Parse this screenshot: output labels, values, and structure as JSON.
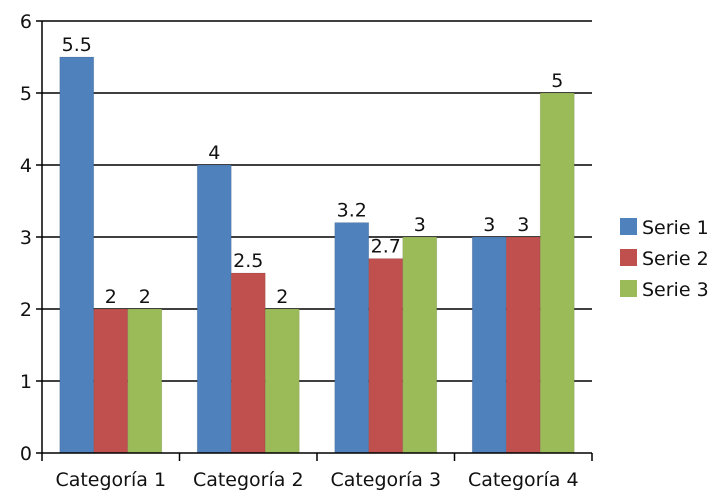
{
  "chart_data": {
    "type": "bar",
    "categories": [
      "Categoría 1",
      "Categoría 2",
      "Categoría 3",
      "Categoría 4"
    ],
    "series": [
      {
        "name": "Serie 1",
        "values": [
          5.5,
          4,
          3.2,
          3
        ],
        "labels": [
          "5.5",
          "4",
          "3.2",
          "3"
        ],
        "color": "#4F81BD"
      },
      {
        "name": "Serie 2",
        "values": [
          2,
          2.5,
          2.7,
          3
        ],
        "labels": [
          "2",
          "2.5",
          "2.7",
          "3"
        ],
        "color": "#C0504D"
      },
      {
        "name": "Serie 3",
        "values": [
          2,
          2,
          3,
          5
        ],
        "labels": [
          "2",
          "2",
          "3",
          "5"
        ],
        "color": "#9BBB59"
      }
    ],
    "yticks": [
      "0",
      "1",
      "2",
      "3",
      "4",
      "5",
      "6"
    ],
    "ylim": [
      0,
      6
    ],
    "grid": true,
    "legend_position": "right",
    "title": "",
    "xlabel": "",
    "ylabel": ""
  }
}
